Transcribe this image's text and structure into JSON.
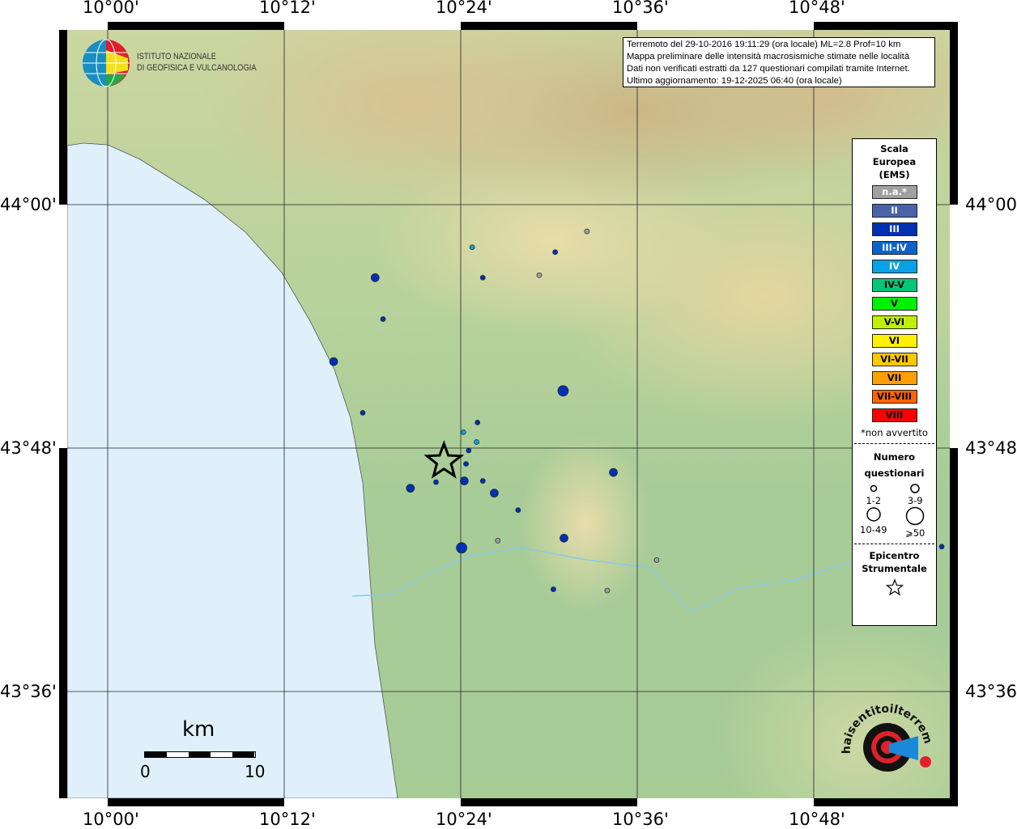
{
  "ticks": {
    "lon": [
      "10°00'",
      "10°12'",
      "10°24'",
      "10°36'",
      "10°48'"
    ],
    "lat": [
      "44°00'",
      "43°48'",
      "43°36'"
    ]
  },
  "info": {
    "lines": [
      "Terremoto del 29-10-2016 19:11:29 (ora locale) ML=2.8 Prof=10 km",
      "Mappa preliminare delle intensità macrosismiche stimate nelle località",
      "Dati non verificati estratti da 127 questionari compilati tramite Internet.",
      "Ultimo aggiornamento: 19-12-2025 06:40 (ora locale)"
    ]
  },
  "ingv_logo": {
    "line1": "ISTITUTO NAZIONALE",
    "line2": "DI GEOFISICA E VULCANOLOGIA"
  },
  "legend": {
    "title": [
      "Scala",
      "Europea",
      "(EMS)"
    ],
    "classes": [
      {
        "label": "n.a.*",
        "color": "#a0a0a0"
      },
      {
        "label": "II",
        "color": "#4a62a8"
      },
      {
        "label": "III",
        "color": "#0030b4"
      },
      {
        "label": "III-IV",
        "color": "#0a64c8"
      },
      {
        "label": "IV",
        "color": "#0aa0e6"
      },
      {
        "label": "IV-V",
        "color": "#00c878"
      },
      {
        "label": "V",
        "color": "#00f000"
      },
      {
        "label": "V-VI",
        "color": "#c0f000"
      },
      {
        "label": "VI",
        "color": "#fff000"
      },
      {
        "label": "VI-VII",
        "color": "#ffc800"
      },
      {
        "label": "VII",
        "color": "#ffa000"
      },
      {
        "label": "VII-VIII",
        "color": "#ff6400"
      },
      {
        "label": "VIII",
        "color": "#ff0000"
      }
    ],
    "note": "*non avvertito",
    "count_title": [
      "Numero",
      "questionari"
    ],
    "count_classes": [
      "1-2",
      "3-9",
      "10-49",
      "⩾50"
    ],
    "epicenter_title": [
      "Epicentro",
      "Strumentale"
    ]
  },
  "scalebar": {
    "unit": "km",
    "min": "0",
    "max": "10"
  },
  "hsit_logo": {
    "text": "www.haisentitoilterremoto.it"
  },
  "epicenter": {
    "lon": 10.381,
    "lat": 43.789
  },
  "observations": [
    {
      "lon": 10.413,
      "lat": 43.965,
      "ems": "IV",
      "n": "1-2"
    },
    {
      "lon": 10.425,
      "lat": 43.94,
      "ems": "III",
      "n": "1-2"
    },
    {
      "lon": 10.507,
      "lat": 43.961,
      "ems": "III",
      "n": "1-2"
    },
    {
      "lon": 10.543,
      "lat": 43.978,
      "ems": "n.a.*",
      "n": "1-2"
    },
    {
      "lon": 10.489,
      "lat": 43.942,
      "ems": "n.a.*",
      "n": "1-2"
    },
    {
      "lon": 10.303,
      "lat": 43.94,
      "ems": "III",
      "n": "3-9"
    },
    {
      "lon": 10.312,
      "lat": 43.906,
      "ems": "III",
      "n": "1-2"
    },
    {
      "lon": 10.256,
      "lat": 43.871,
      "ems": "III",
      "n": "3-9"
    },
    {
      "lon": 10.289,
      "lat": 43.829,
      "ems": "III",
      "n": "1-2"
    },
    {
      "lon": 10.516,
      "lat": 43.847,
      "ems": "III",
      "n": "10-49"
    },
    {
      "lon": 10.419,
      "lat": 43.821,
      "ems": "III",
      "n": "1-2"
    },
    {
      "lon": 10.403,
      "lat": 43.813,
      "ems": "IV",
      "n": "1-2"
    },
    {
      "lon": 10.418,
      "lat": 43.805,
      "ems": "IV",
      "n": "1-2"
    },
    {
      "lon": 10.409,
      "lat": 43.798,
      "ems": "III",
      "n": "1-2"
    },
    {
      "lon": 10.406,
      "lat": 43.787,
      "ems": "III",
      "n": "1-2"
    },
    {
      "lon": 10.343,
      "lat": 43.767,
      "ems": "III",
      "n": "3-9"
    },
    {
      "lon": 10.372,
      "lat": 43.772,
      "ems": "III",
      "n": "1-2"
    },
    {
      "lon": 10.404,
      "lat": 43.773,
      "ems": "III",
      "n": "3-9"
    },
    {
      "lon": 10.425,
      "lat": 43.773,
      "ems": "III",
      "n": "1-2"
    },
    {
      "lon": 10.438,
      "lat": 43.763,
      "ems": "III",
      "n": "3-9"
    },
    {
      "lon": 10.465,
      "lat": 43.749,
      "ems": "III",
      "n": "1-2"
    },
    {
      "lon": 10.573,
      "lat": 43.78,
      "ems": "III",
      "n": "3-9"
    },
    {
      "lon": 10.517,
      "lat": 43.726,
      "ems": "III",
      "n": "3-9"
    },
    {
      "lon": 10.401,
      "lat": 43.718,
      "ems": "III",
      "n": "10-49"
    },
    {
      "lon": 10.442,
      "lat": 43.724,
      "ems": "n.a.*",
      "n": "1-2"
    },
    {
      "lon": 10.505,
      "lat": 43.684,
      "ems": "III",
      "n": "1-2"
    },
    {
      "lon": 10.566,
      "lat": 43.683,
      "ems": "n.a.*",
      "n": "1-2"
    },
    {
      "lon": 10.622,
      "lat": 43.708,
      "ems": "n.a.*",
      "n": "1-2"
    },
    {
      "lon": 10.945,
      "lat": 43.719,
      "ems": "III",
      "n": "1-2"
    }
  ]
}
